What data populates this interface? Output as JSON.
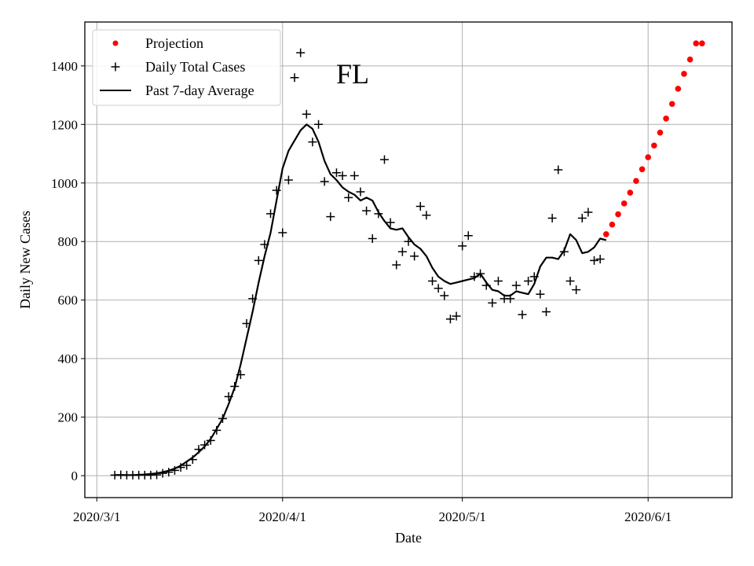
{
  "chart_data": {
    "type": "line",
    "title": "",
    "annotation": "FL",
    "xlabel": "Date",
    "ylabel": "Daily New Cases",
    "x_unit": "day_of_year_2020",
    "xlim": [
      59,
      167
    ],
    "ylim": [
      -75,
      1550
    ],
    "grid": true,
    "legend_position": "top-left",
    "x_ticks": [
      {
        "value": 61,
        "label": "2020/3/1"
      },
      {
        "value": 92,
        "label": "2020/4/1"
      },
      {
        "value": 122,
        "label": "2020/5/1"
      },
      {
        "value": 153,
        "label": "2020/6/1"
      }
    ],
    "y_ticks": [
      0,
      200,
      400,
      600,
      800,
      1000,
      1200,
      1400
    ],
    "series": [
      {
        "name": "Projection",
        "style": "dots",
        "color": "#ff0000",
        "x": [
          146,
          147,
          148,
          149,
          150,
          151,
          152,
          153,
          154,
          155,
          156,
          157,
          158,
          159,
          160,
          161,
          162
        ],
        "y": [
          825,
          858,
          893,
          930,
          967,
          1007,
          1047,
          1088,
          1128,
          1172,
          1220,
          1270,
          1322,
          1373,
          1422,
          1477,
          1477
        ]
      },
      {
        "name": "Daily Total Cases",
        "style": "plus",
        "color": "#000000",
        "x": [
          64,
          65,
          66,
          67,
          68,
          69,
          70,
          71,
          72,
          73,
          74,
          75,
          76,
          77,
          78,
          79,
          80,
          81,
          82,
          83,
          84,
          85,
          86,
          87,
          88,
          89,
          90,
          91,
          92,
          93,
          94,
          95,
          96,
          97,
          98,
          99,
          100,
          101,
          102,
          103,
          104,
          105,
          106,
          107,
          108,
          109,
          110,
          111,
          112,
          113,
          114,
          115,
          116,
          117,
          118,
          119,
          120,
          121,
          122,
          123,
          124,
          125,
          126,
          127,
          128,
          129,
          130,
          131,
          132,
          133,
          134,
          135,
          136,
          137,
          138,
          139,
          140,
          141,
          142,
          143,
          144,
          145
        ],
        "y": [
          2,
          3,
          2,
          2,
          2,
          2,
          2,
          3,
          8,
          12,
          18,
          28,
          35,
          55,
          90,
          105,
          120,
          155,
          195,
          270,
          305,
          345,
          520,
          605,
          735,
          790,
          895,
          975,
          830,
          1010,
          1360,
          1445,
          1235,
          1140,
          1200,
          1005,
          885,
          1035,
          1025,
          950,
          1025,
          970,
          905,
          810,
          895,
          1080,
          865,
          720,
          765,
          800,
          750,
          920,
          890,
          665,
          640,
          615,
          535,
          545,
          785,
          820,
          680,
          690,
          650,
          590,
          665,
          605,
          605,
          650,
          550,
          665,
          680,
          620,
          560,
          880,
          1045,
          765,
          665,
          635,
          880,
          900,
          735,
          740
        ]
      },
      {
        "name": "Past 7-day Average",
        "style": "line",
        "color": "#000000",
        "x": [
          64,
          65,
          66,
          67,
          68,
          69,
          70,
          71,
          72,
          73,
          74,
          75,
          76,
          77,
          78,
          79,
          80,
          81,
          82,
          83,
          84,
          85,
          86,
          87,
          88,
          89,
          90,
          91,
          92,
          93,
          94,
          95,
          96,
          97,
          98,
          99,
          100,
          101,
          102,
          103,
          104,
          105,
          106,
          107,
          108,
          109,
          110,
          111,
          112,
          113,
          114,
          115,
          116,
          117,
          118,
          119,
          120,
          121,
          122,
          123,
          124,
          125,
          126,
          127,
          128,
          129,
          130,
          131,
          132,
          133,
          134,
          135,
          136,
          137,
          138,
          139,
          140,
          141,
          142,
          143,
          144,
          145,
          146
        ],
        "y": [
          2,
          2,
          2,
          2,
          3,
          4,
          6,
          8,
          12,
          17,
          24,
          34,
          48,
          62,
          80,
          100,
          125,
          160,
          195,
          245,
          300,
          380,
          470,
          560,
          660,
          750,
          830,
          940,
          1050,
          1110,
          1145,
          1180,
          1200,
          1185,
          1140,
          1075,
          1030,
          1010,
          985,
          970,
          960,
          940,
          950,
          940,
          900,
          870,
          845,
          840,
          845,
          815,
          790,
          775,
          750,
          710,
          680,
          665,
          655,
          660,
          665,
          670,
          675,
          690,
          660,
          635,
          630,
          615,
          615,
          630,
          625,
          620,
          655,
          715,
          745,
          745,
          740,
          770,
          825,
          805,
          760,
          765,
          780,
          810,
          805
        ]
      }
    ]
  }
}
